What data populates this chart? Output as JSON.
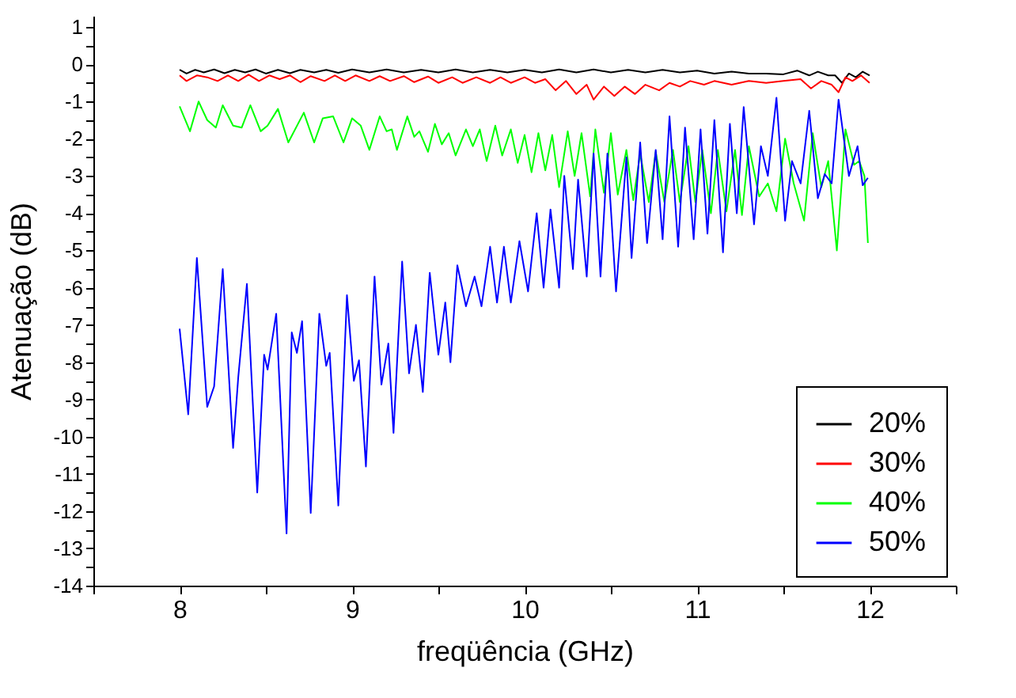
{
  "chart_data": {
    "type": "line",
    "xlabel": "freqüência (GHz)",
    "ylabel": "Atenuação (dB)",
    "xlim": [
      7.5,
      12.5
    ],
    "ylim": [
      -14,
      1.3
    ],
    "xticks": [
      {
        "value": 7.5,
        "label": null
      },
      8,
      {
        "value": 8.5,
        "label": null
      },
      9,
      {
        "value": 9.5,
        "label": null
      },
      10,
      {
        "value": 10.5,
        "label": null
      },
      11,
      {
        "value": 11.5,
        "label": null
      },
      12,
      {
        "value": 12.5,
        "label": null
      }
    ],
    "yticks": [
      -14,
      {
        "value": -13.5,
        "label": null
      },
      -13,
      {
        "value": -12.5,
        "label": null
      },
      -12,
      {
        "value": -11.5,
        "label": null
      },
      -11,
      {
        "value": -10.5,
        "label": null
      },
      -10,
      {
        "value": -9.5,
        "label": null
      },
      -9,
      {
        "value": -8.5,
        "label": null
      },
      -8,
      {
        "value": -7.5,
        "label": null
      },
      -7,
      {
        "value": -6.5,
        "label": null
      },
      -6,
      {
        "value": -5.5,
        "label": null
      },
      -5,
      {
        "value": -4.5,
        "label": null
      },
      -4,
      {
        "value": -3.5,
        "label": null
      },
      -3,
      {
        "value": -2.5,
        "label": null
      },
      -2,
      {
        "value": -1.5,
        "label": null
      },
      -1,
      {
        "value": -0.5,
        "label": null
      },
      0,
      {
        "value": 0.5,
        "label": null
      },
      1
    ],
    "grid": false,
    "legend": "bottom right",
    "marker": "none",
    "line_style": "solid",
    "series": [
      {
        "name": "20%",
        "color": "#000000",
        "x": [
          8.0,
          8.04,
          8.09,
          8.14,
          8.2,
          8.26,
          8.32,
          8.38,
          8.44,
          8.5,
          8.57,
          8.64,
          8.7,
          8.78,
          8.85,
          8.92,
          9.0,
          9.1,
          9.2,
          9.3,
          9.4,
          9.5,
          9.6,
          9.7,
          9.8,
          9.9,
          10.0,
          10.1,
          10.2,
          10.3,
          10.4,
          10.5,
          10.6,
          10.7,
          10.8,
          10.9,
          11.0,
          11.1,
          11.2,
          11.3,
          11.4,
          11.5,
          11.58,
          11.65,
          11.7,
          11.76,
          11.8,
          11.84,
          11.88,
          11.92,
          11.96,
          12.0
        ],
        "values": [
          -0.15,
          -0.25,
          -0.15,
          -0.22,
          -0.14,
          -0.24,
          -0.15,
          -0.22,
          -0.14,
          -0.25,
          -0.15,
          -0.24,
          -0.15,
          -0.22,
          -0.15,
          -0.23,
          -0.14,
          -0.22,
          -0.14,
          -0.22,
          -0.15,
          -0.22,
          -0.14,
          -0.22,
          -0.15,
          -0.22,
          -0.15,
          -0.22,
          -0.14,
          -0.22,
          -0.14,
          -0.22,
          -0.15,
          -0.22,
          -0.15,
          -0.22,
          -0.17,
          -0.25,
          -0.2,
          -0.25,
          -0.25,
          -0.27,
          -0.17,
          -0.3,
          -0.2,
          -0.3,
          -0.3,
          -0.5,
          -0.25,
          -0.35,
          -0.2,
          -0.3
        ]
      },
      {
        "name": "30%",
        "color": "#ff0000",
        "x": [
          8.0,
          8.04,
          8.1,
          8.16,
          8.22,
          8.28,
          8.34,
          8.4,
          8.46,
          8.52,
          8.58,
          8.64,
          8.7,
          8.76,
          8.84,
          8.9,
          8.96,
          9.02,
          9.1,
          9.16,
          9.22,
          9.3,
          9.36,
          9.44,
          9.5,
          9.58,
          9.64,
          9.72,
          9.8,
          9.86,
          9.92,
          10.0,
          10.06,
          10.12,
          10.18,
          10.24,
          10.3,
          10.36,
          10.4,
          10.46,
          10.52,
          10.58,
          10.64,
          10.7,
          10.78,
          10.84,
          10.9,
          10.96,
          11.04,
          11.1,
          11.2,
          11.3,
          11.4,
          11.5,
          11.6,
          11.66,
          11.72,
          11.78,
          11.82,
          11.86,
          11.9,
          11.95,
          12.0
        ],
        "values": [
          -0.3,
          -0.45,
          -0.3,
          -0.35,
          -0.45,
          -0.3,
          -0.45,
          -0.28,
          -0.45,
          -0.3,
          -0.4,
          -0.3,
          -0.48,
          -0.32,
          -0.45,
          -0.3,
          -0.45,
          -0.3,
          -0.45,
          -0.32,
          -0.45,
          -0.32,
          -0.48,
          -0.33,
          -0.5,
          -0.35,
          -0.5,
          -0.35,
          -0.5,
          -0.35,
          -0.5,
          -0.35,
          -0.5,
          -0.4,
          -0.7,
          -0.45,
          -0.8,
          -0.55,
          -0.95,
          -0.6,
          -0.85,
          -0.6,
          -0.8,
          -0.55,
          -0.7,
          -0.5,
          -0.6,
          -0.45,
          -0.55,
          -0.45,
          -0.55,
          -0.45,
          -0.5,
          -0.45,
          -0.4,
          -0.65,
          -0.45,
          -0.55,
          -0.75,
          -0.35,
          -0.45,
          -0.3,
          -0.5
        ]
      },
      {
        "name": "40%",
        "color": "#00ff00",
        "x": [
          8.0,
          8.06,
          8.11,
          8.16,
          8.21,
          8.25,
          8.31,
          8.36,
          8.41,
          8.47,
          8.51,
          8.57,
          8.63,
          8.72,
          8.78,
          8.83,
          8.89,
          8.95,
          9.0,
          9.05,
          9.1,
          9.16,
          9.2,
          9.23,
          9.26,
          9.32,
          9.36,
          9.39,
          9.44,
          9.48,
          9.52,
          9.56,
          9.6,
          9.66,
          9.7,
          9.74,
          9.78,
          9.83,
          9.87,
          9.92,
          9.96,
          10.0,
          10.04,
          10.08,
          10.12,
          10.16,
          10.2,
          10.25,
          10.29,
          10.33,
          10.38,
          10.41,
          10.46,
          10.5,
          10.54,
          10.59,
          10.63,
          10.67,
          10.72,
          10.76,
          10.81,
          10.86,
          10.9,
          10.95,
          10.99,
          11.03,
          11.08,
          11.12,
          11.17,
          11.22,
          11.26,
          11.3,
          11.36,
          11.41,
          11.46,
          11.51,
          11.56,
          11.62,
          11.67,
          11.72,
          11.76,
          11.81,
          11.86,
          11.91,
          11.94,
          11.97,
          11.99
        ],
        "values": [
          -1.13,
          -1.8,
          -1.0,
          -1.5,
          -1.7,
          -1.1,
          -1.65,
          -1.7,
          -1.1,
          -1.8,
          -1.65,
          -1.2,
          -2.1,
          -1.3,
          -2.1,
          -1.45,
          -1.4,
          -2.1,
          -1.45,
          -1.65,
          -2.3,
          -1.4,
          -1.8,
          -1.75,
          -2.3,
          -1.4,
          -1.95,
          -1.8,
          -2.35,
          -1.6,
          -2.15,
          -1.85,
          -2.45,
          -1.75,
          -2.2,
          -1.75,
          -2.6,
          -1.65,
          -2.45,
          -1.75,
          -2.65,
          -1.9,
          -2.9,
          -1.85,
          -2.85,
          -1.9,
          -3.3,
          -1.8,
          -3.0,
          -1.85,
          -3.55,
          -1.75,
          -3.45,
          -1.85,
          -3.5,
          -2.3,
          -3.65,
          -2.4,
          -3.7,
          -2.35,
          -3.7,
          -2.3,
          -3.7,
          -2.2,
          -3.7,
          -2.3,
          -4.0,
          -2.3,
          -3.95,
          -2.3,
          -4.05,
          -2.2,
          -3.55,
          -3.2,
          -3.95,
          -2.0,
          -3.2,
          -4.2,
          -1.85,
          -3.3,
          -2.6,
          -5.0,
          -1.75,
          -2.7,
          -2.6,
          -3.0,
          -4.8
        ]
      },
      {
        "name": "50%",
        "color": "#0000ff",
        "x": [
          8.0,
          8.05,
          8.1,
          8.16,
          8.2,
          8.25,
          8.31,
          8.34,
          8.39,
          8.45,
          8.49,
          8.51,
          8.56,
          8.62,
          8.65,
          8.68,
          8.71,
          8.76,
          8.81,
          8.85,
          8.87,
          8.92,
          8.97,
          9.01,
          9.04,
          9.08,
          9.13,
          9.17,
          9.21,
          9.24,
          9.29,
          9.33,
          9.37,
          9.41,
          9.45,
          9.5,
          9.54,
          9.57,
          9.61,
          9.66,
          9.71,
          9.75,
          9.8,
          9.84,
          9.88,
          9.92,
          9.97,
          10.02,
          10.07,
          10.11,
          10.15,
          10.2,
          10.23,
          10.28,
          10.31,
          10.36,
          10.4,
          10.44,
          10.48,
          10.53,
          10.59,
          10.62,
          10.67,
          10.71,
          10.76,
          10.8,
          10.84,
          10.89,
          10.93,
          10.98,
          11.02,
          11.06,
          11.1,
          11.15,
          11.19,
          11.23,
          11.27,
          11.33,
          11.37,
          11.41,
          11.46,
          11.51,
          11.55,
          11.6,
          11.65,
          11.7,
          11.74,
          11.78,
          11.82,
          11.88,
          11.93,
          11.96,
          11.99
        ],
        "values": [
          -7.1,
          -9.4,
          -5.2,
          -9.2,
          -8.65,
          -5.5,
          -10.3,
          -8.4,
          -5.9,
          -11.5,
          -7.8,
          -8.2,
          -6.7,
          -12.6,
          -7.2,
          -7.75,
          -6.9,
          -12.05,
          -6.7,
          -8.1,
          -7.75,
          -11.85,
          -6.2,
          -8.5,
          -7.95,
          -10.8,
          -5.7,
          -8.6,
          -7.5,
          -9.9,
          -5.3,
          -8.3,
          -7.0,
          -8.8,
          -5.6,
          -7.8,
          -6.4,
          -8.0,
          -5.4,
          -6.5,
          -5.7,
          -6.5,
          -4.9,
          -6.4,
          -4.9,
          -6.4,
          -4.75,
          -6.1,
          -4.0,
          -6.0,
          -3.9,
          -6.0,
          -3.0,
          -5.5,
          -3.1,
          -5.7,
          -2.4,
          -5.7,
          -2.4,
          -6.1,
          -2.5,
          -5.2,
          -2.1,
          -4.8,
          -2.3,
          -4.7,
          -1.4,
          -4.9,
          -1.7,
          -4.7,
          -1.75,
          -4.55,
          -1.5,
          -5.05,
          -1.6,
          -4.0,
          -1.15,
          -4.3,
          -2.2,
          -3.0,
          -0.9,
          -4.2,
          -2.6,
          -3.2,
          -1.25,
          -3.6,
          -2.95,
          -3.2,
          -0.95,
          -3.0,
          -2.2,
          -3.25,
          -3.05
        ]
      }
    ]
  }
}
